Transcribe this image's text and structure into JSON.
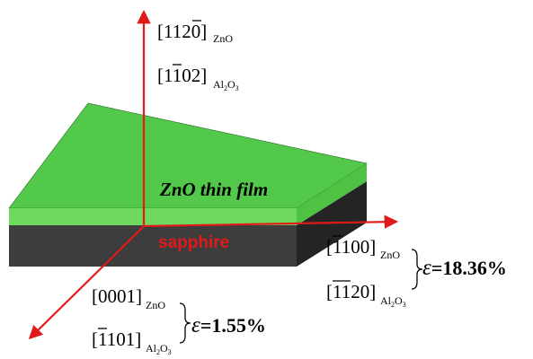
{
  "colors": {
    "film_top": "#52c94a",
    "film_side": "#6fd85f",
    "substrate_front": "#3d3d3d",
    "substrate_side": "#242424",
    "axis": "#e01a1a",
    "text": "#000000"
  },
  "film": {
    "label": "ZnO thin film"
  },
  "substrate": {
    "label": "sapphire"
  },
  "axes": {
    "vertical": {
      "znO": {
        "direction": "[1120]",
        "overbar": "2",
        "subscript": "ZnO"
      },
      "al2o3": {
        "direction": "[1102]",
        "overbar": "1",
        "subscript": "Al",
        "sub_index1": "2",
        "sub_mid": "O",
        "sub_index2": "3"
      }
    },
    "right": {
      "znO": {
        "direction": "[1100]",
        "overbar": "1",
        "subscript": "ZnO"
      },
      "al2o3": {
        "direction": "[1120]",
        "overbar": "11",
        "subscript": "Al",
        "sub_index1": "2",
        "sub_mid": "O",
        "sub_index2": "3"
      },
      "strain_symbol": "ε",
      "strain_value": "=18.36%"
    },
    "front": {
      "znO": {
        "direction": "[0001]",
        "subscript": "ZnO"
      },
      "al2o3": {
        "direction": "[1101]",
        "overbar": "1",
        "subscript": "Al",
        "sub_index1": "2",
        "sub_mid": "O",
        "sub_index2": "3"
      },
      "strain_symbol": "ε",
      "strain_value": "=1.55%"
    }
  }
}
